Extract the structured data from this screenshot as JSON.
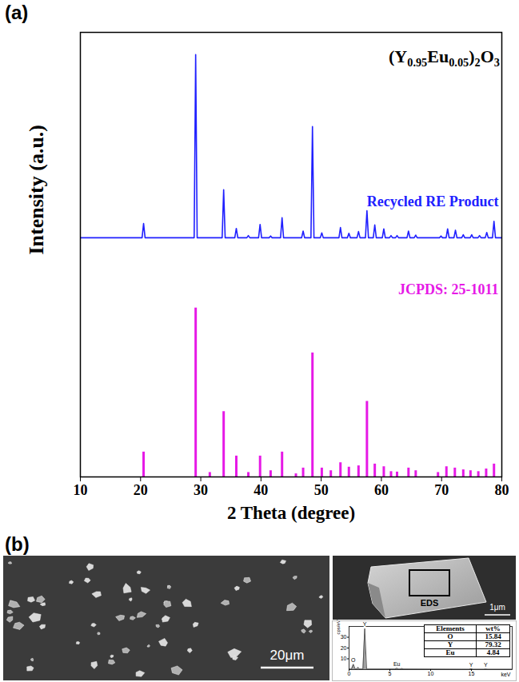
{
  "panel_labels": [
    "(a)",
    "(b)"
  ],
  "chart_data": [
    {
      "type": "line",
      "x_label": "2 Theta (degree)",
      "y_label": "Intensity (a.u.)",
      "annotations": [
        {
          "text": "(Y0.95Eu0.05)2O3"
        }
      ],
      "xlim": [
        10,
        80
      ],
      "xticks": [
        10,
        20,
        30,
        40,
        50,
        60,
        70,
        80
      ],
      "ylim": [
        0,
        100
      ],
      "tick_labels": "x",
      "grid": false,
      "series": [
        {
          "name": "Recycled RE Product",
          "type": "line",
          "color": "#2020ff",
          "x": [
            10,
            20.25,
            20.5,
            20.75,
            28.9,
            29.15,
            29.4,
            33.55,
            33.8,
            34.05,
            35.65,
            35.9,
            36.15,
            37.65,
            37.9,
            38.15,
            39.6,
            39.85,
            40.1,
            41.35,
            41.6,
            41.85,
            43.25,
            43.5,
            43.75,
            46.75,
            47.0,
            47.25,
            48.3,
            48.55,
            48.8,
            49.85,
            50.1,
            50.35,
            52.95,
            53.2,
            53.45,
            54.35,
            54.6,
            54.85,
            55.95,
            56.2,
            56.45,
            57.35,
            57.6,
            57.85,
            58.65,
            58.9,
            59.15,
            60.15,
            60.4,
            60.65,
            61.35,
            61.6,
            61.85,
            62.35,
            62.6,
            62.85,
            64.25,
            64.5,
            64.75,
            65.45,
            65.7,
            65.95,
            69.65,
            69.9,
            70.15,
            70.75,
            71.0,
            71.25,
            72.05,
            72.3,
            72.55,
            73.35,
            73.6,
            73.85,
            74.75,
            75.0,
            75.25,
            76.05,
            76.3,
            76.55,
            77.25,
            77.5,
            77.75,
            78.45,
            78.7,
            78.95,
            80
          ],
          "values": [
            53.8,
            53.8,
            57.0,
            53.8,
            53.8,
            95.0,
            53.8,
            53.8,
            64.6,
            53.8,
            53.8,
            55.9,
            53.8,
            53.8,
            54.3,
            53.8,
            53.8,
            56.8,
            53.8,
            53.8,
            54.2,
            53.8,
            53.8,
            58.3,
            53.8,
            53.8,
            55.3,
            53.8,
            53.8,
            78.8,
            53.8,
            53.8,
            54.9,
            53.8,
            53.8,
            56.1,
            53.8,
            53.8,
            54.8,
            53.8,
            53.8,
            55.2,
            53.8,
            53.8,
            59.9,
            53.8,
            53.8,
            56.7,
            53.8,
            53.8,
            55.8,
            53.8,
            53.8,
            54.3,
            53.8,
            53.8,
            54.3,
            53.8,
            53.8,
            55.3,
            53.8,
            53.8,
            54.4,
            53.8,
            53.8,
            54.2,
            53.8,
            53.8,
            55.8,
            53.8,
            53.8,
            55.5,
            53.8,
            53.8,
            54.5,
            53.8,
            53.8,
            54.5,
            53.8,
            53.8,
            54.3,
            53.8,
            53.8,
            55.0,
            53.8,
            53.8,
            57.5,
            53.8,
            53.8
          ]
        },
        {
          "name": "JCPDS: 25-1011",
          "type": "stick",
          "color": "#e619e6",
          "x": [
            20.5,
            29.15,
            31.5,
            33.8,
            35.9,
            37.9,
            39.85,
            41.6,
            43.5,
            45.8,
            47.0,
            48.55,
            50.1,
            51.6,
            53.2,
            54.6,
            56.2,
            57.6,
            58.9,
            60.4,
            61.6,
            62.6,
            64.5,
            65.7,
            69.4,
            70.8,
            72.2,
            73.6,
            74.8,
            76.1,
            77.4,
            78.7
          ],
          "values": [
            5.6,
            38,
            1,
            14.7,
            4.7,
            1,
            4.7,
            1.4,
            5.6,
            0.7,
            2,
            27.9,
            2,
            1.4,
            3.2,
            2.2,
            2.5,
            17,
            2.9,
            2.3,
            1.2,
            1.1,
            2,
            1.4,
            1,
            2.3,
            2,
            1.6,
            1.4,
            1.2,
            1.8,
            2.9
          ]
        }
      ]
    },
    {
      "type": "area",
      "x_label": "keV",
      "y_label": "cps/eV",
      "color": "#555555",
      "x": [
        0,
        0.3,
        0.52,
        0.75,
        0.9,
        1.1,
        1.3,
        1.7,
        1.92,
        2.15,
        5.6,
        5.85,
        6.1,
        6.25,
        6.46,
        6.7,
        14.7,
        14.96,
        15.2,
        16.5,
        16.74,
        17.0,
        20
      ],
      "values": [
        0.5,
        0.5,
        5,
        0.5,
        0.5,
        2,
        0.5,
        0.5,
        38,
        0.5,
        0.5,
        1.2,
        0.5,
        0.5,
        1,
        0.5,
        0.3,
        0.8,
        0.3,
        0.3,
        0.5,
        0.3,
        0.3
      ],
      "xlim": [
        0,
        20
      ],
      "xticks": [
        0,
        5,
        10,
        15
      ],
      "ylim": [
        0,
        40
      ],
      "yticks": [
        10,
        20,
        30
      ],
      "annotations": [
        {
          "x": 0.52,
          "text": "O"
        },
        {
          "x": 1.92,
          "text": "Y"
        },
        {
          "x": 5.85,
          "text": "Eu"
        },
        {
          "x": 14.96,
          "text": "Y"
        },
        {
          "x": 16.74,
          "text": "Y"
        }
      ]
    }
  ],
  "sem_images": {
    "overview": {
      "scale_bar": "20μm"
    },
    "particle": {
      "scale_bar": "1μm",
      "box_label": "EDS"
    }
  },
  "eds_table": {
    "header": [
      "Elements",
      "wt%"
    ],
    "rows": [
      [
        "O",
        15.84
      ],
      [
        "Y",
        79.32
      ],
      [
        "Eu",
        4.84
      ]
    ]
  }
}
